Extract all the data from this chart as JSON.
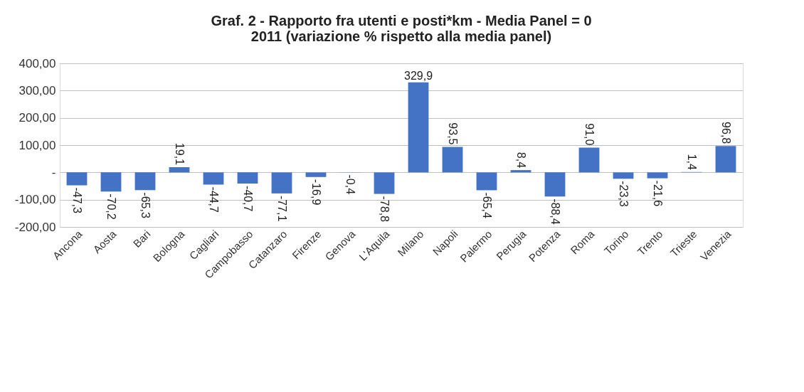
{
  "chart_data": {
    "type": "bar",
    "title": [
      "Graf. 2  - Rapporto fra utenti e posti*km - Media Panel = 0",
      "2011 (variazione % rispetto alla media panel)"
    ],
    "categories": [
      "Ancona",
      "Aosta",
      "Bari",
      "Bologna",
      "Cagliari",
      "Campobasso",
      "Catanzaro",
      "Firenze",
      "Genova",
      "L'Aquila",
      "Milano",
      "Napoli",
      "Palermo",
      "Perugia",
      "Potenza",
      "Roma",
      "Torino",
      "Trento",
      "Trieste",
      "Venezia"
    ],
    "values": [
      -47.3,
      -70.2,
      -65.3,
      19.1,
      -44.7,
      -40.7,
      -77.1,
      -16.9,
      -0.4,
      -78.8,
      329.9,
      93.5,
      -65.4,
      8.4,
      -88.4,
      91.0,
      -23.3,
      -21.6,
      1.4,
      96.8
    ],
    "value_labels": [
      "-47,3",
      "-70,2",
      "-65,3",
      "19,1",
      "-44,7",
      "-40,7",
      "-77,1",
      "-16,9",
      "-0,4",
      "-78,8",
      "329,9",
      "93,5",
      "-65,4",
      "8,4",
      "-88,4",
      "91,0",
      "-23,3",
      "-21,6",
      "1,4",
      "96,8"
    ],
    "color": "#4472c4",
    "ylim": [
      -200,
      400
    ],
    "yticks": [
      {
        "value": -200,
        "label": "-200,00"
      },
      {
        "value": -100,
        "label": "-100,00"
      },
      {
        "value": 0,
        "label": "-"
      },
      {
        "value": 100,
        "label": "100,00"
      },
      {
        "value": 200,
        "label": "200,00"
      },
      {
        "value": 300,
        "label": "300,00"
      },
      {
        "value": 400,
        "label": "400,00"
      }
    ],
    "grid": "y"
  }
}
